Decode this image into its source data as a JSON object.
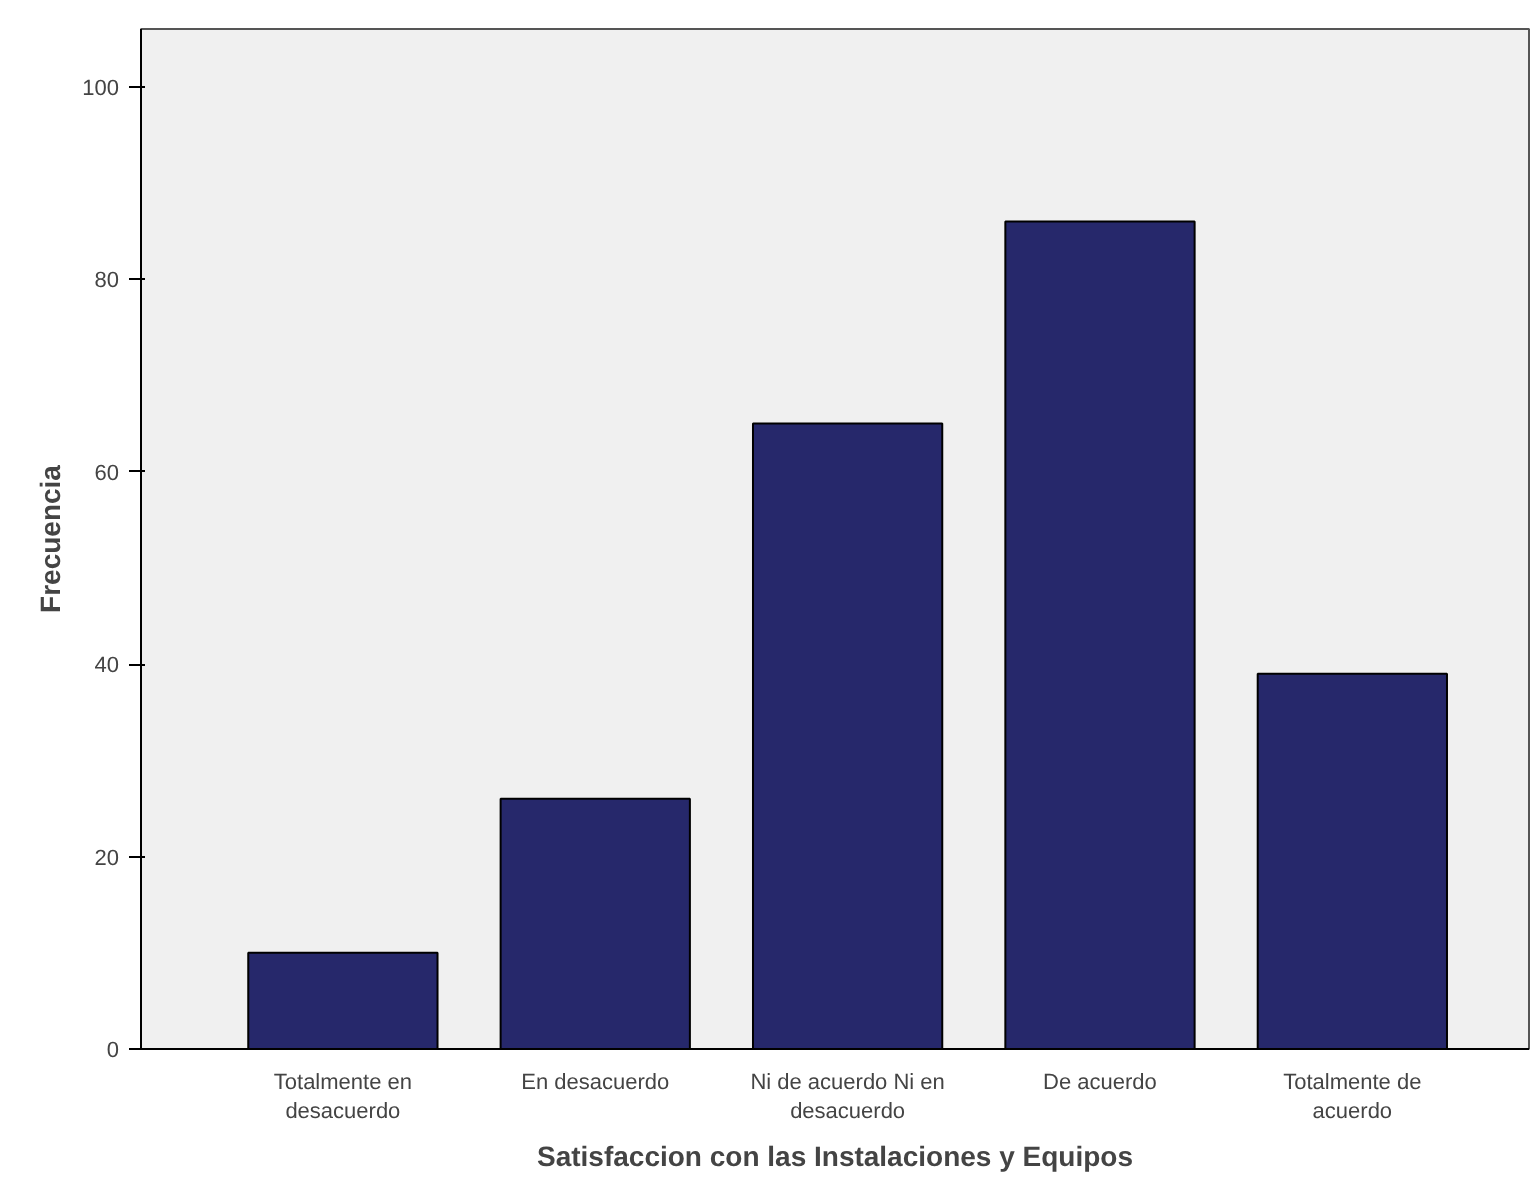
{
  "chart_data": {
    "type": "bar",
    "xlabel": "Satisfaccion con las Instalaciones y Equipos",
    "ylabel": "Frecuencia",
    "categories": [
      "Totalmente en desacuerdo",
      "En desacuerdo",
      "Ni de acuerdo Ni en desacuerdo",
      "De acuerdo",
      "Totalmente de acuerdo"
    ],
    "values": [
      10,
      26,
      65,
      86,
      39
    ],
    "color": "#26286b",
    "ylim": [
      0,
      106
    ],
    "yticks": [
      0,
      20,
      40,
      60,
      80,
      100
    ],
    "grid": false
  }
}
